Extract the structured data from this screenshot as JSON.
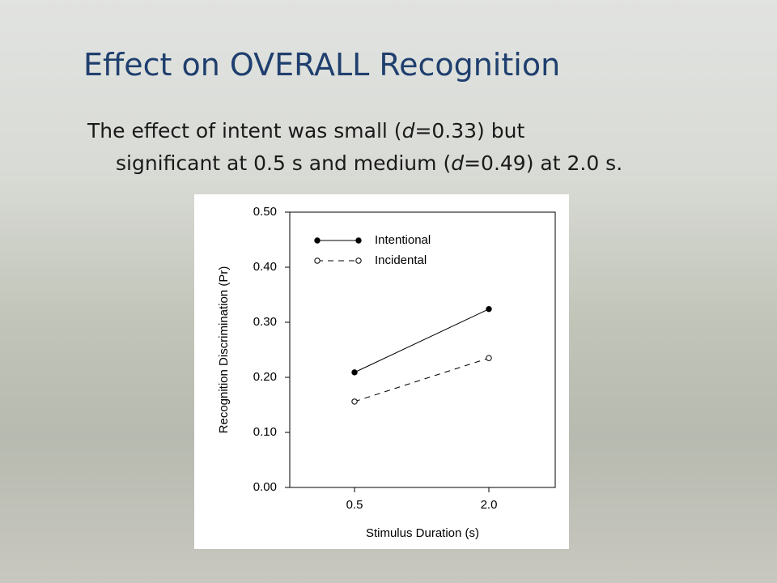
{
  "slide": {
    "title": "Effect on OVERALL Recognition",
    "body": [
      "The effect of intent was small (",
      "d",
      "=0.33) but",
      "significant at 0.5 s and medium (",
      "d",
      "=0.49) at 2.0 s."
    ]
  },
  "chart_data": {
    "type": "line",
    "xlabel": "Stimulus Duration (s)",
    "ylabel": "Recognition Discrimination (Pr)",
    "categories": [
      "0.5",
      "2.0"
    ],
    "series": [
      {
        "name": "Intentional",
        "color": "#000000",
        "linestyle": "solid",
        "marker": "filled",
        "values": [
          0.209,
          0.324
        ]
      },
      {
        "name": "Incidental",
        "color": "#000000",
        "linestyle": "dashed",
        "marker": "open",
        "values": [
          0.156,
          0.235
        ]
      }
    ],
    "ylim": [
      0,
      0.5
    ],
    "yticks": [
      {
        "value": 0,
        "label": "0.00"
      },
      {
        "value": 0.1,
        "label": "0.10"
      },
      {
        "value": 0.2,
        "label": "0.20"
      },
      {
        "value": 0.3,
        "label": "0.30"
      },
      {
        "value": 0.4,
        "label": "0.40"
      },
      {
        "value": 0.5,
        "label": "0.50"
      }
    ],
    "legend": "upper left"
  }
}
